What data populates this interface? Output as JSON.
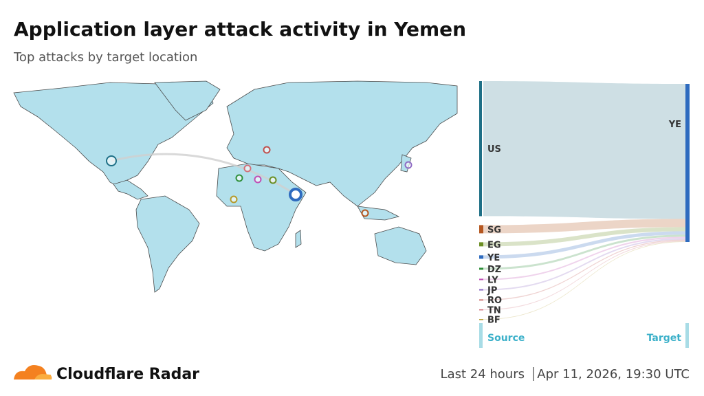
{
  "header": {
    "title": "Application layer attack activity in Yemen",
    "subtitle": "Top attacks by target location"
  },
  "chart_data": {
    "type": "sankey",
    "target": "YE",
    "target_color": "#2e6bbf",
    "source_label": "Source",
    "target_label": "Target",
    "sources": [
      {
        "name": "US",
        "color": "#1e6f86",
        "value": 85.4
      },
      {
        "name": "SG",
        "color": "#b5561f",
        "value": 5.2
      },
      {
        "name": "EG",
        "color": "#6b8e23",
        "value": 2.6
      },
      {
        "name": "YE",
        "color": "#2e6bbf",
        "value": 2.2
      },
      {
        "name": "DZ",
        "color": "#2f8f3a",
        "value": 1.3
      },
      {
        "name": "LY",
        "color": "#c04fb5",
        "value": 0.9
      },
      {
        "name": "JP",
        "color": "#8e6bc4",
        "value": 0.9
      },
      {
        "name": "RO",
        "color": "#c0504d",
        "value": 0.6
      },
      {
        "name": "TN",
        "color": "#d0707a",
        "value": 0.5
      },
      {
        "name": "BF",
        "color": "#b59a2a",
        "value": 0.4
      }
    ]
  },
  "footer": {
    "brand": "Cloudflare Radar",
    "period": "Last 24 hours",
    "timestamp": "Apr 11, 2026, 19:30 UTC"
  }
}
